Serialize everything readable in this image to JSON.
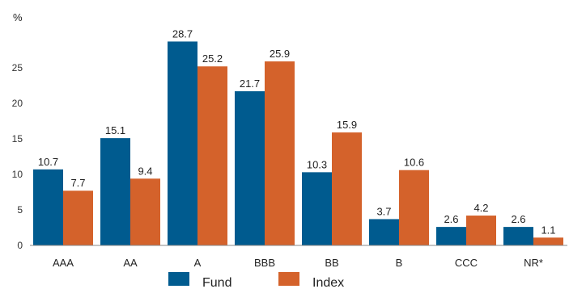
{
  "chart_data": {
    "type": "bar",
    "ylabel": "%",
    "ylim": [
      0,
      30
    ],
    "yticks": [
      0,
      5,
      10,
      15,
      20,
      25
    ],
    "grid": false,
    "legend_position": "bottom",
    "categories": [
      "AAA",
      "AA",
      "A",
      "BBB",
      "BB",
      "B",
      "CCC",
      "NR*"
    ],
    "series": [
      {
        "name": "Fund",
        "color": "#005b8f",
        "values": [
          10.7,
          15.1,
          28.7,
          21.7,
          10.3,
          3.7,
          2.6,
          2.6
        ]
      },
      {
        "name": "Index",
        "color": "#d4622b",
        "values": [
          7.7,
          9.4,
          25.2,
          25.9,
          15.9,
          10.6,
          4.2,
          1.1
        ]
      }
    ]
  }
}
